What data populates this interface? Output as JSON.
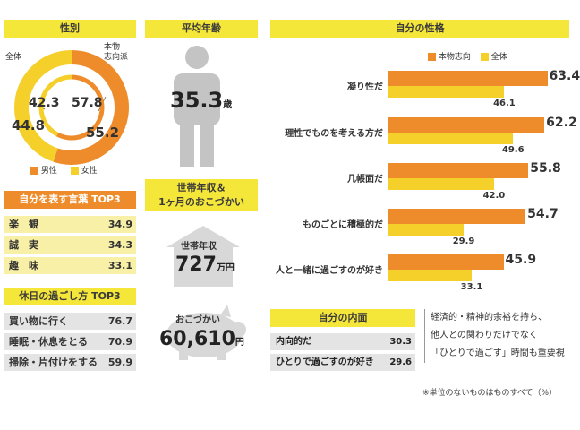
{
  "gender": {
    "title": "性別",
    "outer_label": "本物\n志向派",
    "inner_label": "全体",
    "outer": {
      "male": 55.2,
      "female": 44.8
    },
    "inner": {
      "male": 57.8,
      "female": 42.3
    },
    "legend_male": "男性",
    "legend_female": "女性",
    "colors": {
      "male": "#ee8b2a",
      "female": "#f5cf2a"
    }
  },
  "age": {
    "title": "平均年齢",
    "value": "35.3",
    "unit": "歳"
  },
  "income": {
    "title": "世帯年収＆\n1ヶ月のおこづかい",
    "household_label": "世帯年収",
    "household_value": "727",
    "household_unit": "万円",
    "allowance_label": "おこづかい",
    "allowance_value": "60,610",
    "allowance_unit": "円"
  },
  "words": {
    "title": "自分を表す言葉 TOP3",
    "items": [
      {
        "label": "楽　観",
        "value": "34.9"
      },
      {
        "label": "誠　実",
        "value": "34.3"
      },
      {
        "label": "趣　味",
        "value": "33.1"
      }
    ]
  },
  "holiday": {
    "title": "休日の過ごし方 TOP3",
    "items": [
      {
        "label": "買い物に行く",
        "value": "76.7"
      },
      {
        "label": "睡眠・休息をとる",
        "value": "70.9"
      },
      {
        "label": "掃除・片付けをする",
        "value": "59.9"
      }
    ]
  },
  "inner": {
    "title": "自分の内面",
    "items": [
      {
        "label": "内向的だ",
        "value": "30.3"
      },
      {
        "label": "ひとりで過ごすのが好き",
        "value": "29.6"
      }
    ]
  },
  "summary": {
    "lines": [
      "経済的・精神的余裕を持ち、",
      "他人との関わりだけでなく",
      "「ひとりで過ごす」時間も重要視"
    ]
  },
  "footnote": "※単位のないものはものすべて（%）",
  "chart_data": {
    "type": "bar",
    "title": "自分の性格",
    "categories": [
      "凝り性だ",
      "理性でものを考える方だ",
      "几帳面だ",
      "ものごとに積極的だ",
      "人と一緒に過ごすのが好き"
    ],
    "series": [
      {
        "name": "本物志向",
        "values": [
          63.4,
          62.2,
          55.8,
          54.7,
          45.9
        ],
        "color": "#ee8b2a"
      },
      {
        "name": "全体",
        "values": [
          46.1,
          49.6,
          42.0,
          29.9,
          33.1
        ],
        "color": "#f5cf2a"
      }
    ],
    "value_labels": [
      [
        "63.4",
        "62.2",
        "55.8",
        "54.7",
        "45.9"
      ],
      [
        "46.1",
        "49.6",
        "42.0",
        "29.9",
        "33.1"
      ]
    ],
    "legend_position": "top",
    "grid": false,
    "xlim": [
      0,
      70
    ]
  }
}
